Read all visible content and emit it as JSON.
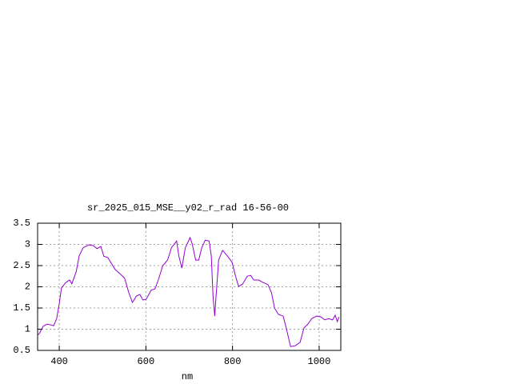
{
  "chart_data": {
    "type": "line",
    "title": "sr_2025_015_MSE__y02_r_rad 16-56-00",
    "x_label": "nm",
    "xlim": [
      350,
      1050
    ],
    "xticks": [
      400,
      600,
      800,
      1000
    ],
    "ylim": [
      0.5,
      3.5
    ],
    "yticks": [
      0.5,
      1,
      1.5,
      2,
      2.5,
      3,
      3.5
    ],
    "grid": true,
    "series": [
      {
        "color": "#9400d3",
        "x": [
          350,
          354,
          363,
          372,
          381,
          387,
          394,
          400,
          405,
          415,
          424,
          429,
          439,
          446,
          455,
          468,
          479,
          487,
          496,
          503,
          512,
          529,
          542,
          551,
          560,
          569,
          578,
          586,
          593,
          601,
          612,
          621,
          630,
          639,
          650,
          659,
          671,
          676,
          683,
          691,
          702,
          707,
          715,
          722,
          729,
          737,
          746,
          751,
          755,
          759,
          762,
          768,
          777,
          788,
          799,
          807,
          814,
          823,
          834,
          842,
          849,
          860,
          871,
          882,
          890,
          897,
          906,
          917,
          924,
          934,
          945,
          956,
          965,
          974,
          983,
          994,
          1004,
          1013,
          1022,
          1031,
          1037,
          1042,
          1046
        ],
        "values": [
          0.86,
          0.9,
          1.07,
          1.12,
          1.1,
          1.08,
          1.25,
          1.6,
          1.97,
          2.1,
          2.16,
          2.07,
          2.35,
          2.73,
          2.92,
          2.99,
          2.97,
          2.9,
          2.95,
          2.72,
          2.69,
          2.41,
          2.29,
          2.2,
          1.88,
          1.63,
          1.78,
          1.82,
          1.69,
          1.71,
          1.92,
          1.95,
          2.2,
          2.5,
          2.63,
          2.92,
          3.08,
          2.73,
          2.44,
          2.92,
          3.16,
          3.01,
          2.63,
          2.63,
          2.92,
          3.1,
          3.08,
          2.73,
          1.78,
          1.31,
          1.78,
          2.63,
          2.86,
          2.73,
          2.58,
          2.25,
          2.01,
          2.06,
          2.25,
          2.27,
          2.16,
          2.16,
          2.1,
          2.05,
          1.86,
          1.5,
          1.35,
          1.31,
          1.03,
          0.59,
          0.61,
          0.69,
          1.03,
          1.12,
          1.25,
          1.31,
          1.29,
          1.22,
          1.25,
          1.22,
          1.33,
          1.18,
          1.29
        ]
      }
    ]
  }
}
